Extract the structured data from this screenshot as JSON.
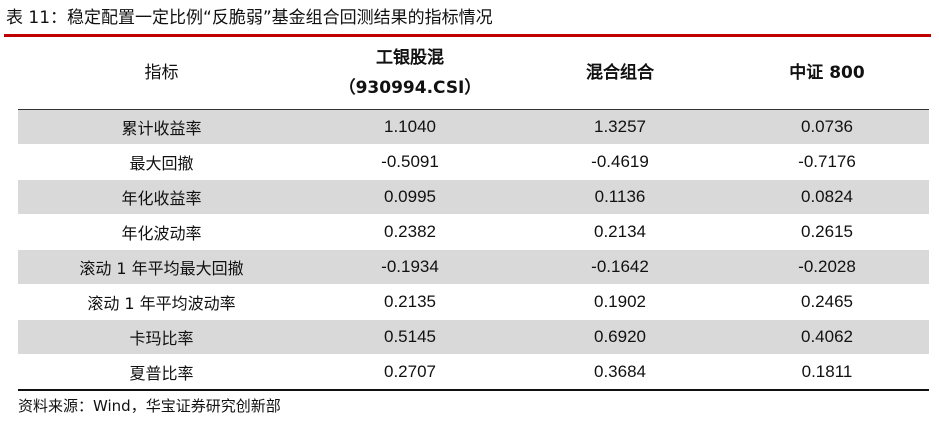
{
  "title": "表 11：稳定配置一定比例“反脆弱”基金组合回测结果的指标情况",
  "table": {
    "headers": {
      "metric": "指标",
      "col1_line1": "工银股混",
      "col1_line2": "（930994.CSI）",
      "col2": "混合组合",
      "col3": "中证 800"
    },
    "rows": [
      {
        "label": "累计收益率",
        "v1": "1.1040",
        "v2": "1.3257",
        "v3": "0.0736"
      },
      {
        "label": "最大回撤",
        "v1": "-0.5091",
        "v2": "-0.4619",
        "v3": "-0.7176"
      },
      {
        "label": "年化收益率",
        "v1": "0.0995",
        "v2": "0.1136",
        "v3": "0.0824"
      },
      {
        "label": "年化波动率",
        "v1": "0.2382",
        "v2": "0.2134",
        "v3": "0.2615"
      },
      {
        "label": "滚动 1 年平均最大回撤",
        "v1": "-0.1934",
        "v2": "-0.1642",
        "v3": "-0.2028"
      },
      {
        "label": "滚动 1 年平均波动率",
        "v1": "0.2135",
        "v2": "0.1902",
        "v3": "0.2465"
      },
      {
        "label": "卡玛比率",
        "v1": "0.5145",
        "v2": "0.6920",
        "v3": "0.4062"
      },
      {
        "label": "夏普比率",
        "v1": "0.2707",
        "v2": "0.3684",
        "v3": "0.1811"
      }
    ]
  },
  "source": "资料来源：Wind，华宝证券研究创新部",
  "colors": {
    "title_rule": "#c00000",
    "row_shade": "#d9d9d9"
  }
}
